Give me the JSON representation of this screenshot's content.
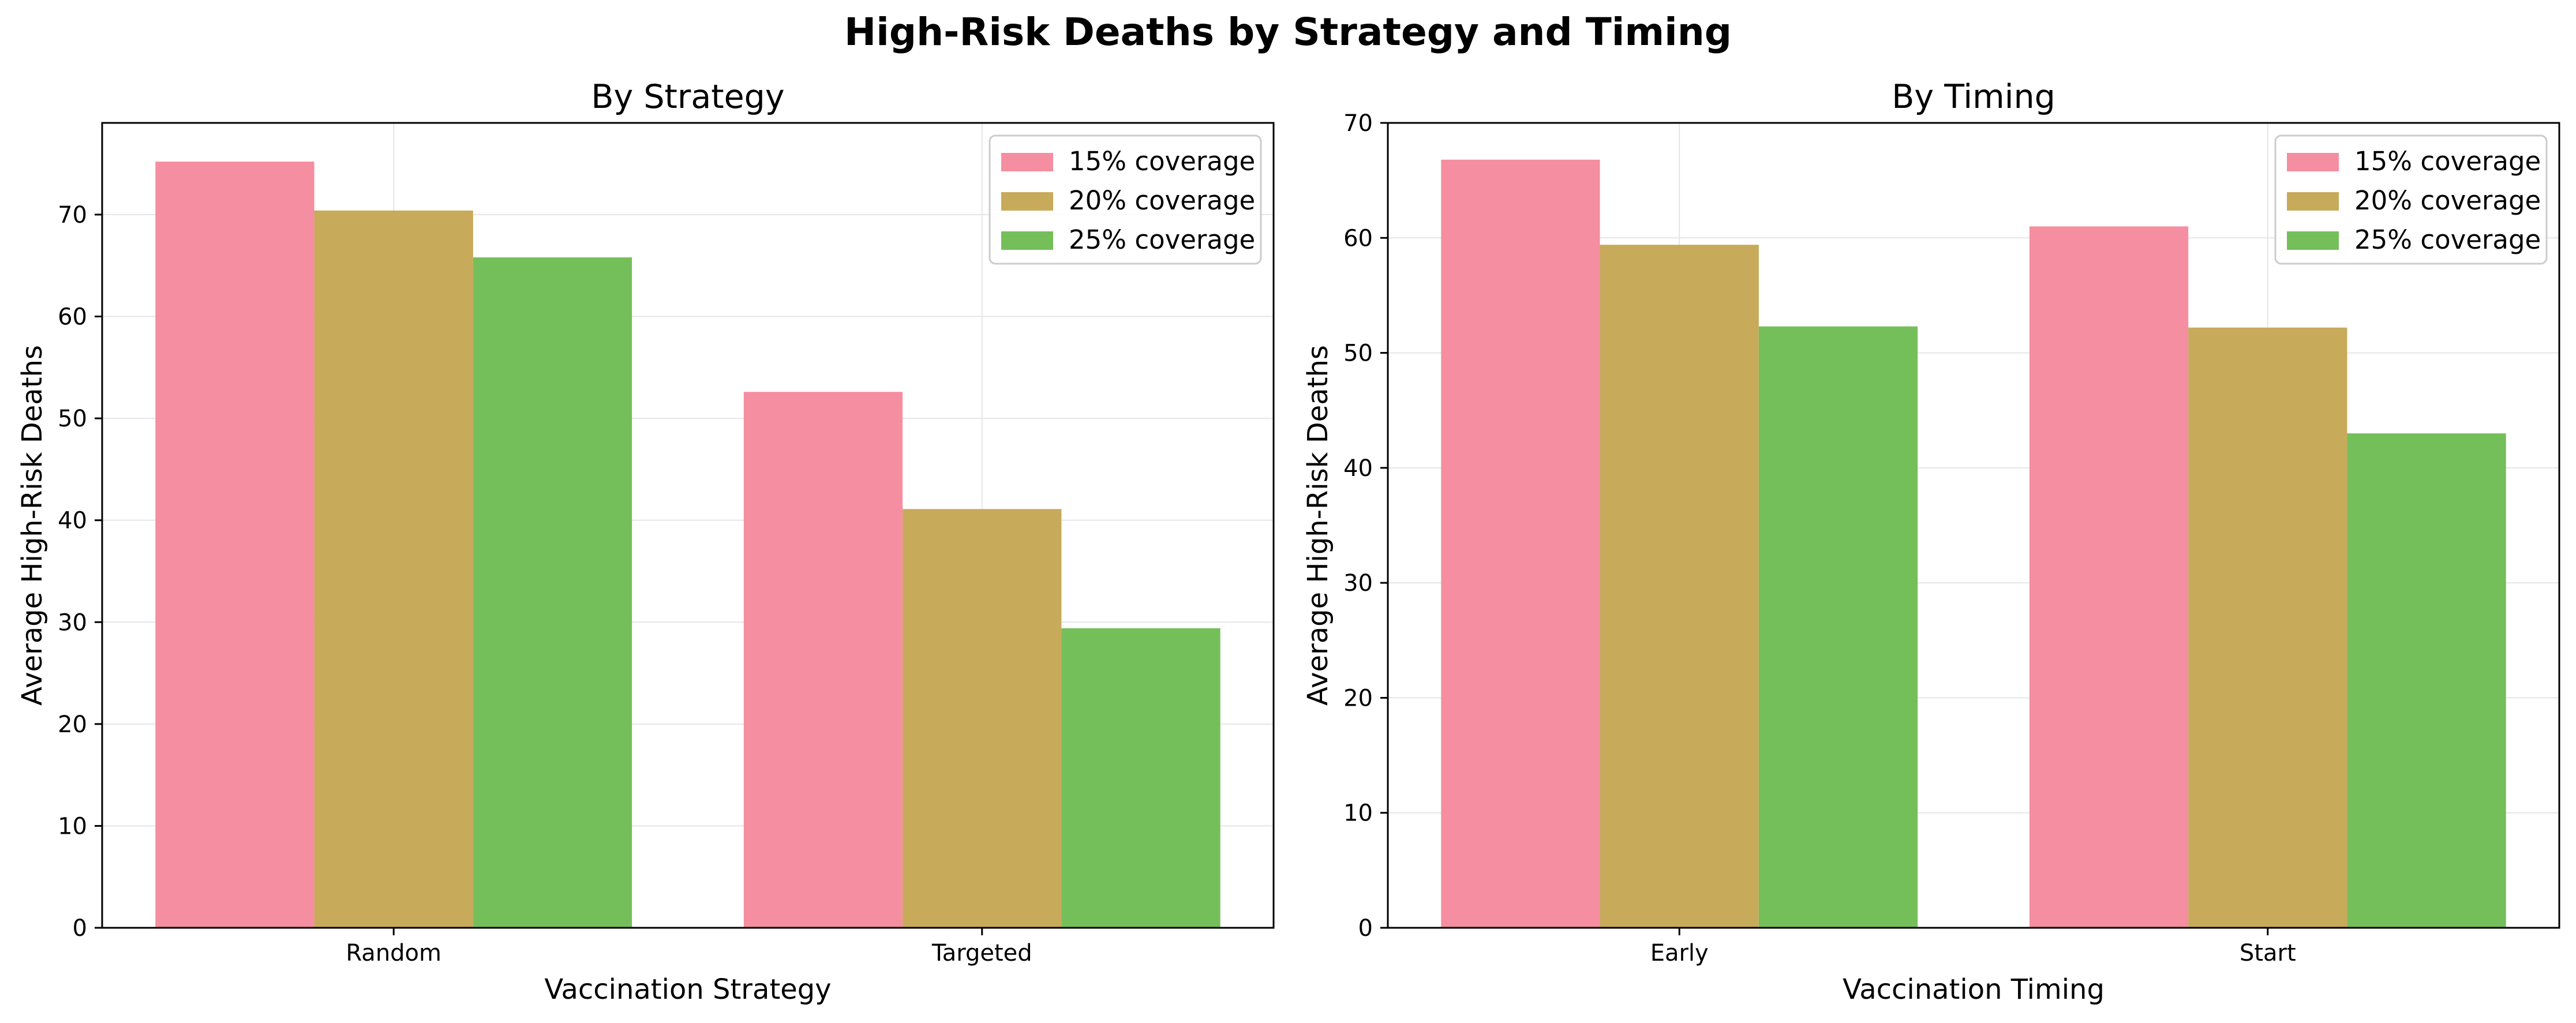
{
  "figure": {
    "title": "High-Risk Deaths by Strategy and Timing"
  },
  "colors": {
    "15% coverage": "#f58ea0",
    "20% coverage": "#c7aa5a",
    "25% coverage": "#75bf5a",
    "grid": "#e5e5e5"
  },
  "chart_data": [
    {
      "type": "bar",
      "title": "By Strategy",
      "xlabel": "Vaccination Strategy",
      "ylabel": "Average High-Risk Deaths",
      "categories": [
        "Random",
        "Targeted"
      ],
      "series": [
        {
          "name": "15% coverage",
          "values": [
            75.2,
            52.6
          ]
        },
        {
          "name": "20% coverage",
          "values": [
            70.4,
            41.1
          ]
        },
        {
          "name": "25% coverage",
          "values": [
            65.8,
            29.4
          ]
        }
      ],
      "ylim": [
        0,
        79
      ],
      "yticks": [
        0,
        10,
        20,
        30,
        40,
        50,
        60,
        70
      ],
      "grid": true,
      "legend": "top-right"
    },
    {
      "type": "bar",
      "title": "By Timing",
      "xlabel": "Vaccination Timing",
      "ylabel": "Average High-Risk Deaths",
      "categories": [
        "Early",
        "Start"
      ],
      "series": [
        {
          "name": "15% coverage",
          "values": [
            66.8,
            61.0
          ]
        },
        {
          "name": "20% coverage",
          "values": [
            59.4,
            52.2
          ]
        },
        {
          "name": "25% coverage",
          "values": [
            52.3,
            43.0
          ]
        }
      ],
      "ylim": [
        0,
        70
      ],
      "yticks": [
        0,
        10,
        20,
        30,
        40,
        50,
        60,
        70
      ],
      "grid": true,
      "legend": "top-right"
    }
  ]
}
